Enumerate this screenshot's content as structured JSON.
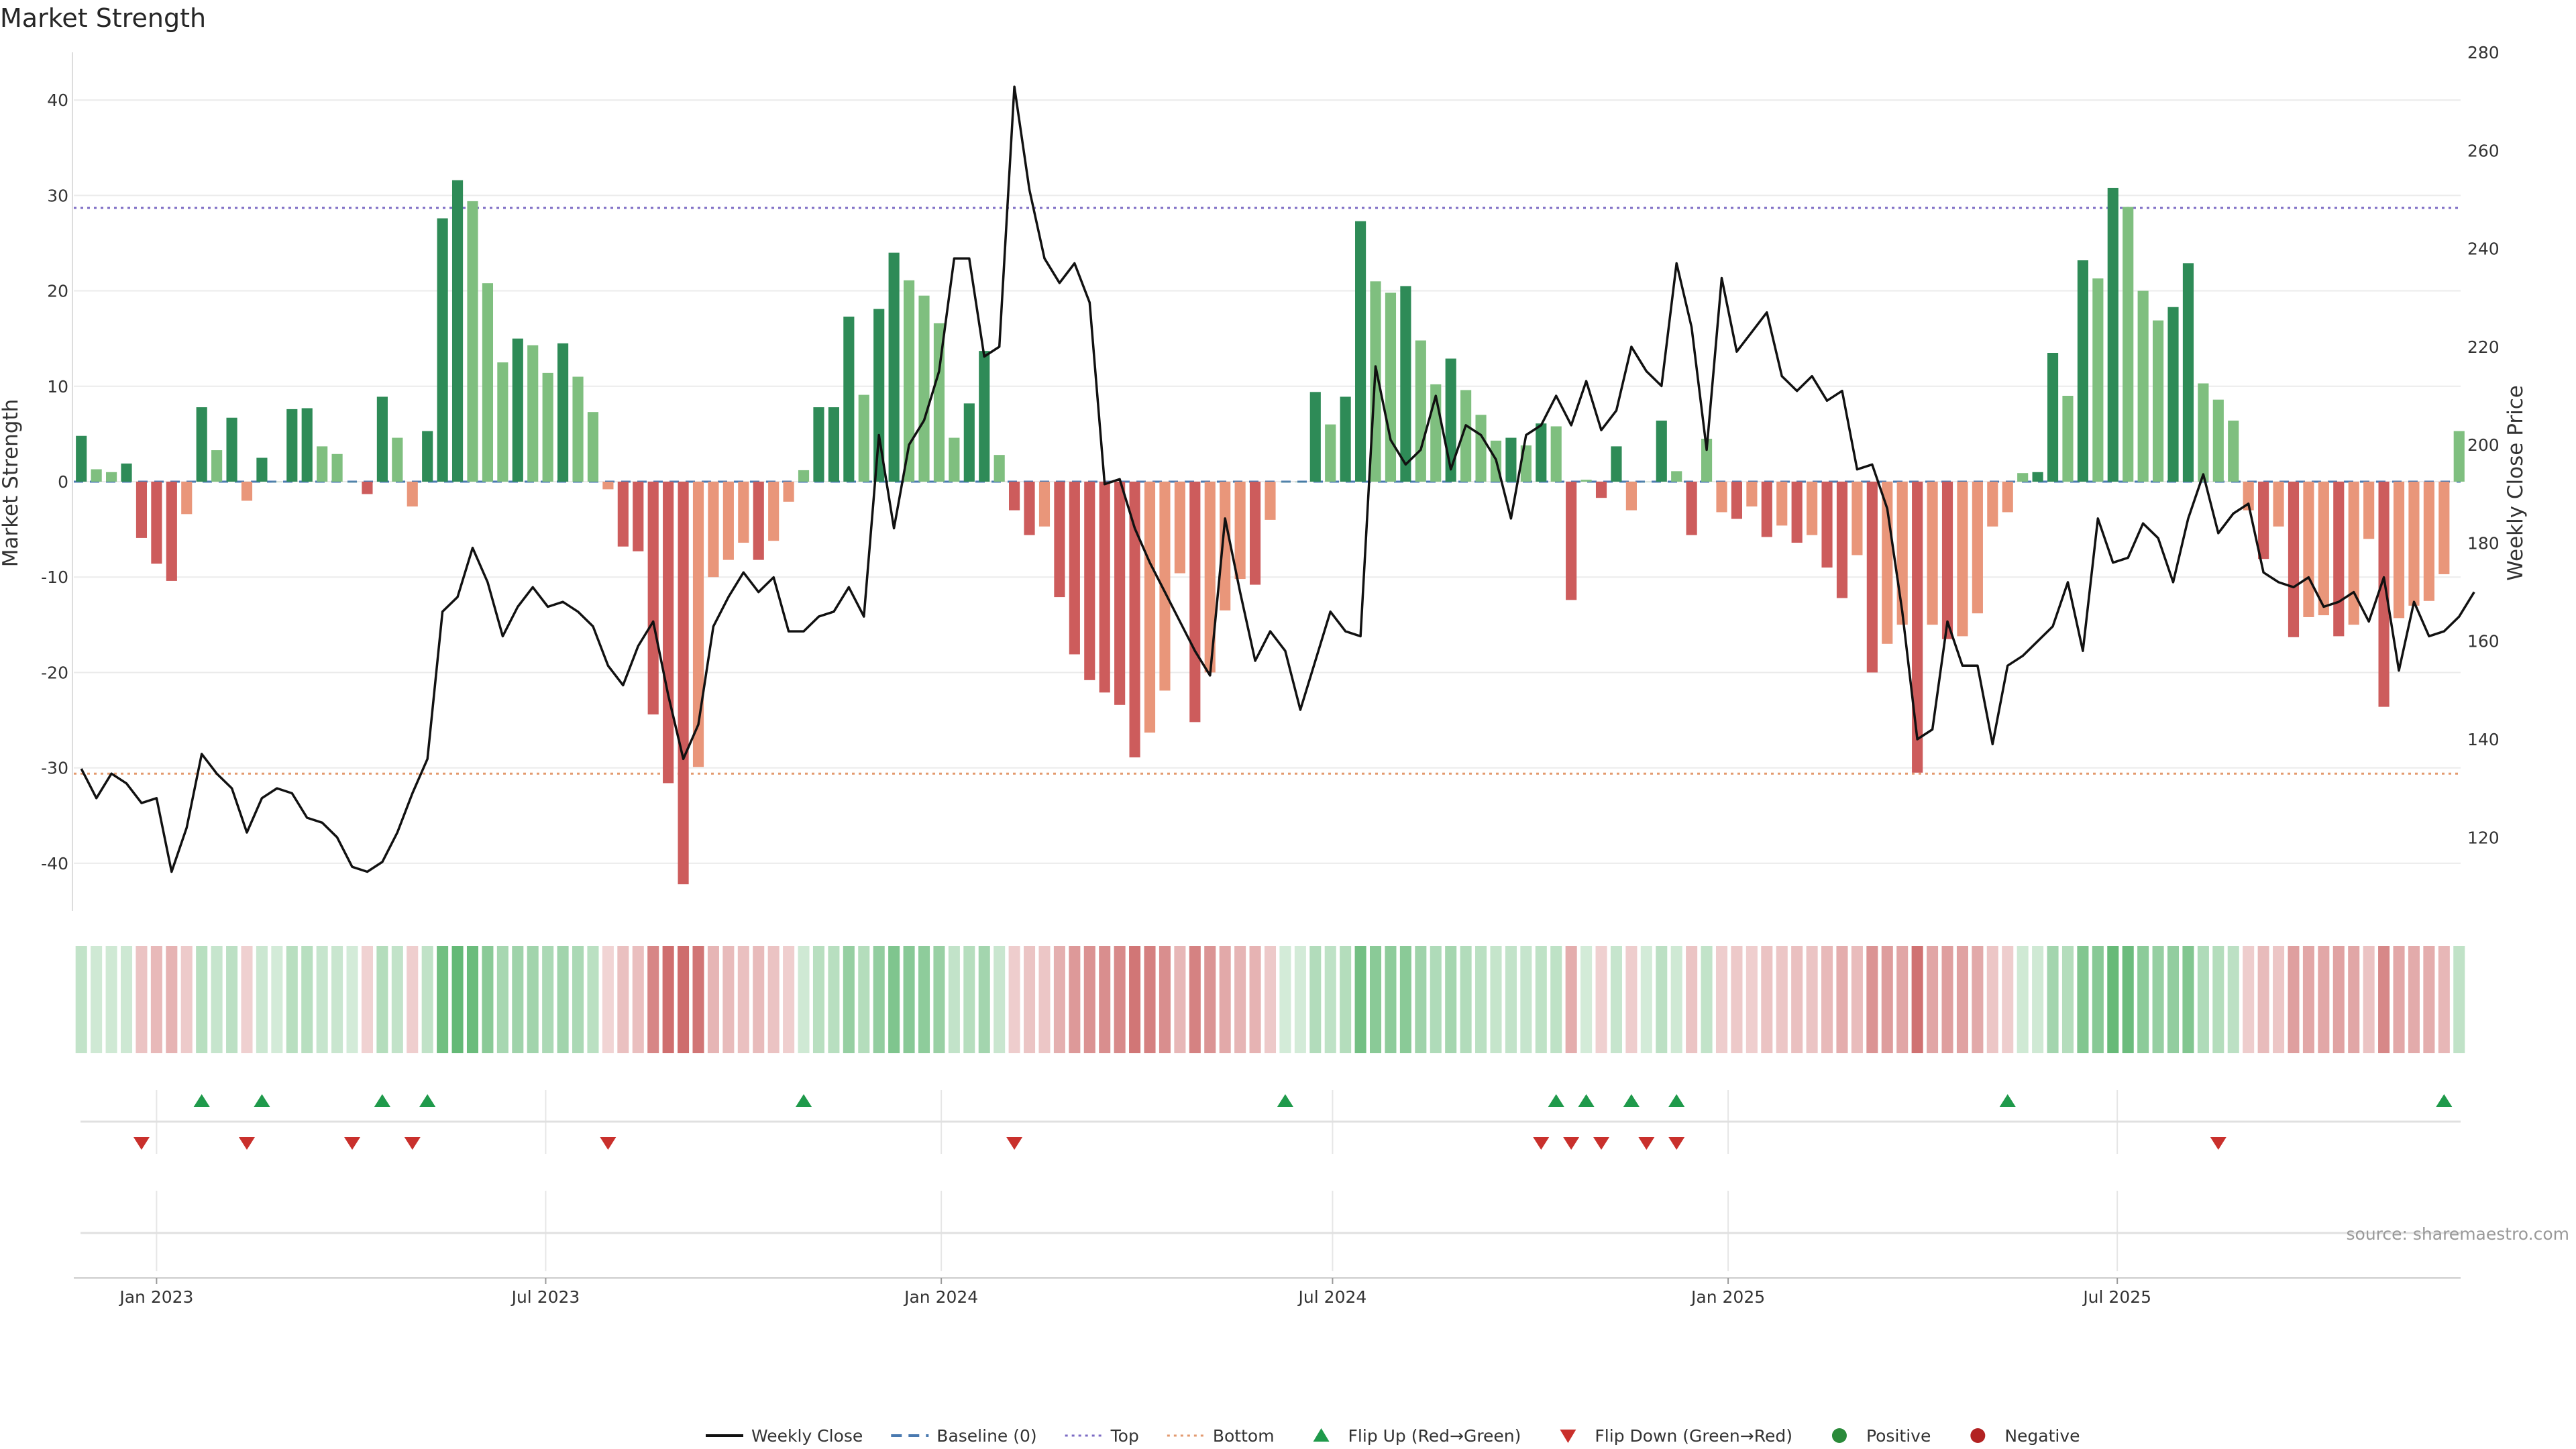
{
  "chart_data": {
    "type": "bar+line",
    "title": "Market Strength",
    "ylabel_left": "Market Strength",
    "ylabel_right": "Weekly Close Price",
    "source": "source: sharemaestro.com",
    "ylim_left": [
      -45,
      45
    ],
    "ylim_right": [
      105,
      280
    ],
    "yticks_left": [
      -40,
      -30,
      -20,
      -10,
      0,
      10,
      20,
      30,
      40
    ],
    "yticks_right": [
      120,
      140,
      160,
      180,
      200,
      220,
      240,
      260,
      280
    ],
    "top_level": 28.7,
    "bottom_level": -30.6,
    "x_start": "2022-11-27",
    "week_days": 7,
    "x_ticks": [
      {
        "label": "Jan 2023",
        "date": "2023-01-01"
      },
      {
        "label": "Jul 2023",
        "date": "2023-07-01"
      },
      {
        "label": "Jan 2024",
        "date": "2024-01-01"
      },
      {
        "label": "Jul 2024",
        "date": "2024-07-01"
      },
      {
        "label": "Jan 2025",
        "date": "2025-01-01"
      },
      {
        "label": "Jul 2025",
        "date": "2025-07-01"
      }
    ],
    "strength": [
      4.8,
      1.3,
      1.0,
      1.9,
      -5.9,
      -8.6,
      -10.4,
      -3.4,
      7.8,
      3.3,
      6.7,
      -2.0,
      2.5,
      0,
      7.6,
      7.7,
      3.7,
      2.9,
      0,
      -1.3,
      8.9,
      4.6,
      -2.6,
      5.3,
      27.6,
      31.6,
      29.4,
      20.8,
      12.5,
      15.0,
      14.3,
      11.4,
      14.5,
      11.0,
      7.3,
      -0.8,
      -6.8,
      -7.3,
      -24.4,
      -31.6,
      -42.2,
      -29.9,
      -10.0,
      -8.2,
      -6.4,
      -8.2,
      -6.2,
      -2.1,
      1.2,
      7.8,
      7.8,
      17.3,
      9.1,
      18.1,
      24.0,
      21.1,
      19.5,
      16.6,
      4.6,
      8.2,
      13.7,
      2.8,
      -3.0,
      -5.6,
      -4.7,
      -12.1,
      -18.1,
      -20.8,
      -22.1,
      -23.4,
      -28.9,
      -26.3,
      -21.9,
      -9.6,
      -25.2,
      -20.0,
      -13.5,
      -10.2,
      -10.8,
      -4.0,
      0,
      0,
      9.4,
      6.0,
      8.9,
      27.3,
      21.0,
      19.8,
      20.5,
      14.8,
      10.2,
      12.9,
      9.6,
      7.0,
      4.3,
      4.6,
      3.8,
      6.1,
      5.8,
      -12.4,
      0.2,
      -1.7,
      3.7,
      -3.0,
      0,
      6.4,
      1.1,
      -5.6,
      4.5,
      -3.2,
      -3.9,
      -2.6,
      -5.8,
      -4.6,
      -6.4,
      -5.6,
      -9.0,
      -12.2,
      -7.7,
      -20.0,
      -17.0,
      -15.0,
      -30.5,
      -15.0,
      -16.5,
      -16.2,
      -13.8,
      -4.7,
      -3.2,
      0.9,
      1.0,
      13.5,
      9.0,
      23.2,
      21.3,
      30.8,
      28.8,
      20.0,
      16.9,
      18.3,
      22.9,
      10.3,
      8.6,
      6.4,
      -3.0,
      -8.1,
      -4.7,
      -16.3,
      -14.2,
      -14.0,
      -16.2,
      -15.0,
      -6.0,
      -23.6,
      -14.3,
      -13.0,
      -12.5,
      -9.7,
      5.3
    ],
    "close": [
      134,
      128,
      133,
      131,
      127,
      128,
      113,
      122,
      137,
      133,
      130,
      121,
      128,
      130,
      129,
      124,
      123,
      120,
      114,
      113,
      115,
      121,
      129,
      136,
      166,
      169,
      179,
      172,
      161,
      167,
      171,
      167,
      168,
      166,
      163,
      155,
      151,
      159,
      164,
      149,
      136,
      143,
      163,
      169,
      174,
      170,
      173,
      162,
      162,
      165,
      166,
      171,
      165,
      202,
      183,
      200,
      205,
      215,
      238,
      238,
      218,
      220,
      273,
      252,
      238,
      233,
      237,
      229,
      192,
      193,
      183,
      176,
      170,
      164,
      158,
      153,
      185,
      170,
      156,
      162,
      158,
      146,
      156,
      166,
      162,
      161,
      216,
      201,
      196,
      199,
      210,
      195,
      204,
      202,
      197,
      185,
      202,
      204,
      210,
      204,
      213,
      203,
      207,
      220,
      215,
      212,
      237,
      224,
      199,
      234,
      219,
      223,
      227,
      214,
      211,
      214,
      209,
      211,
      195,
      196,
      187,
      166,
      140,
      142,
      164,
      155,
      155,
      139,
      155,
      157,
      160,
      163,
      172,
      158,
      185,
      176,
      177,
      184,
      181,
      172,
      185,
      194,
      182,
      186,
      188,
      174,
      172,
      171,
      173,
      167,
      168,
      170,
      164,
      173,
      154,
      168,
      161,
      162,
      165,
      170
    ],
    "flip_up_index": [
      8,
      12,
      20,
      23,
      48,
      80,
      98,
      100,
      103,
      106,
      128,
      157
    ],
    "flip_down_index": [
      4,
      11,
      18,
      22,
      35,
      62,
      97,
      99,
      101,
      104,
      106,
      142
    ],
    "legend": [
      {
        "label": "Weekly Close",
        "kind": "line",
        "color": "#111111"
      },
      {
        "label": "Baseline (0)",
        "kind": "dash",
        "color": "#4a7ab0"
      },
      {
        "label": "Top",
        "kind": "dot",
        "color": "#7c6bc4"
      },
      {
        "label": "Bottom",
        "kind": "dot",
        "color": "#e39a6f"
      },
      {
        "label": "Flip Up (Red→Green)",
        "kind": "tri-up",
        "color": "#1f9a4b"
      },
      {
        "label": "Flip Down (Green→Red)",
        "kind": "tri-down",
        "color": "#c9302c"
      },
      {
        "label": "Positive",
        "kind": "circle",
        "color": "#2a8a3a"
      },
      {
        "label": "Negative",
        "kind": "circle",
        "color": "#b22222"
      }
    ],
    "colors": {
      "pos_strong": "#2e8b57",
      "pos_weak": "#7fbf7f",
      "neg_strong": "#cd5c5c",
      "neg_weak": "#e9967a",
      "grid": "#ebebeb",
      "price": "#111111",
      "baseline": "#4a7ab0",
      "top": "#7c6bc4",
      "bottom": "#e39a6f"
    }
  }
}
